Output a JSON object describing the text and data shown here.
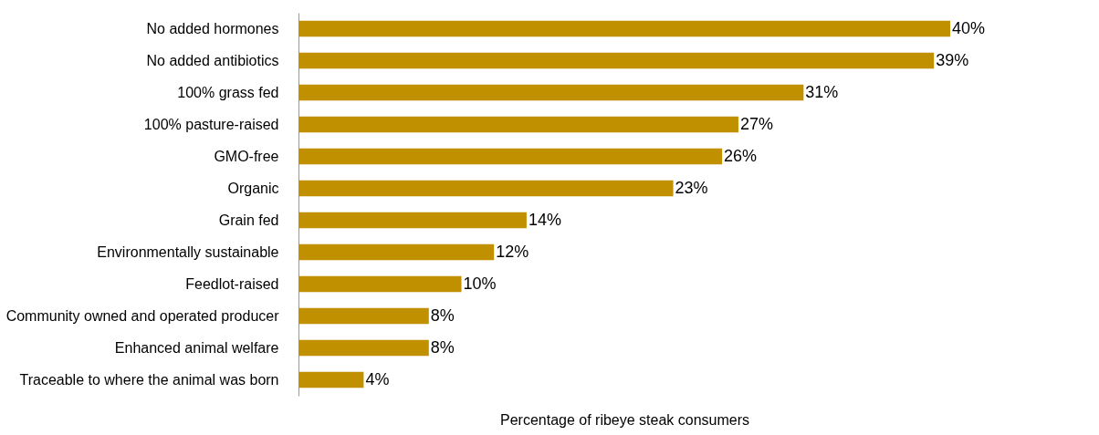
{
  "chart_data": {
    "type": "bar",
    "orientation": "horizontal",
    "xlabel": "Percentage of ribeye steak consumers",
    "categories": [
      "No added hormones",
      "No added antibiotics",
      "100% grass fed",
      "100% pasture-raised",
      "GMO-free",
      "Organic",
      "Grain fed",
      "Environmentally sustainable",
      "Feedlot-raised",
      "Community owned and operated producer",
      "Enhanced animal welfare",
      "Traceable to where the animal was born"
    ],
    "values": [
      40,
      39,
      31,
      27,
      26,
      23,
      14,
      12,
      10,
      8,
      8,
      4
    ],
    "value_labels": [
      "40%",
      "39%",
      "31%",
      "27%",
      "26%",
      "23%",
      "14%",
      "12%",
      "10%",
      "8%",
      "8%",
      "4%"
    ],
    "color": "#c09000"
  }
}
